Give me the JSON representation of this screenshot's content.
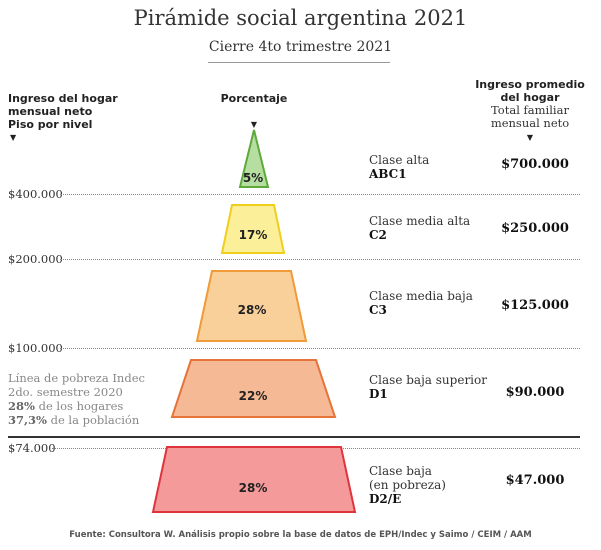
{
  "title": "Pirámide social argentina 2021",
  "subtitle": "Cierre 4to trimestre 2021",
  "headers": {
    "left": [
      "Ingreso del hogar",
      "mensual neto",
      "Piso por nivel"
    ],
    "center": "Porcentaje",
    "right_bold": [
      "Ingreso promedio",
      "del hogar"
    ],
    "right_sub": [
      "Total familiar",
      "mensual neto"
    ]
  },
  "thresholds": [
    "$400.000",
    "$200.000",
    "$100.000",
    "$74.000"
  ],
  "levels": [
    {
      "pct": "5%",
      "name": "Clase alta",
      "code": "ABC1",
      "income": "$700.000",
      "fill": "#b5dea0",
      "stroke": "#5fa83c"
    },
    {
      "pct": "17%",
      "name": "Clase media alta",
      "code": "C2",
      "income": "$250.000",
      "fill": "#fbef9a",
      "stroke": "#f0cf1c"
    },
    {
      "pct": "28%",
      "name": "Clase media baja",
      "code": "C3",
      "income": "$125.000",
      "fill": "#f9d09a",
      "stroke": "#f09a38"
    },
    {
      "pct": "22%",
      "name": "Clase baja superior",
      "code": "D1",
      "income": "$90.000",
      "fill": "#f6b995",
      "stroke": "#e6733a"
    },
    {
      "pct": "28%",
      "name_lines": [
        "Clase baja",
        "(en pobreza)"
      ],
      "code": "D2/E",
      "income": "$47.000",
      "fill": "#f49a9a",
      "stroke": "#e0343c"
    }
  ],
  "poverty": {
    "line1": "Línea de pobreza Indec",
    "line2": "2do. semestre 2020",
    "households_pct": "28%",
    "households_text": "de los hogares",
    "population_pct": "37,3%",
    "population_text": "de la población"
  },
  "footer": "Fuente: Consultora W. Análisis propio sobre la base de datos de EPH/Indec y Saimo  / CEIM / AAM"
}
